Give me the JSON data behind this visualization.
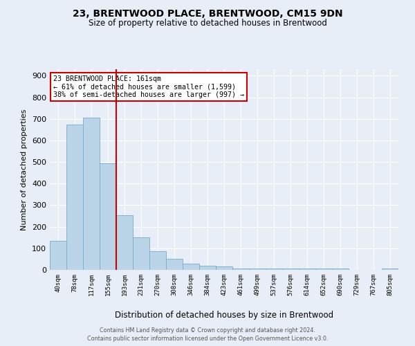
{
  "title": "23, BRENTWOOD PLACE, BRENTWOOD, CM15 9DN",
  "subtitle": "Size of property relative to detached houses in Brentwood",
  "bar_labels": [
    "40sqm",
    "78sqm",
    "117sqm",
    "155sqm",
    "193sqm",
    "231sqm",
    "270sqm",
    "308sqm",
    "346sqm",
    "384sqm",
    "423sqm",
    "461sqm",
    "499sqm",
    "537sqm",
    "576sqm",
    "614sqm",
    "652sqm",
    "690sqm",
    "729sqm",
    "767sqm",
    "805sqm"
  ],
  "bar_values": [
    135,
    675,
    705,
    495,
    252,
    152,
    86,
    51,
    28,
    20,
    15,
    7,
    7,
    5,
    5,
    5,
    5,
    5,
    0,
    0,
    5
  ],
  "bar_color": "#bad4e8",
  "bar_edge_color": "#7aaac8",
  "background_color": "#e8eef8",
  "gridcolor": "#ffffff",
  "vline_x": 3.5,
  "vline_color": "#cc0000",
  "ylabel": "Number of detached properties",
  "xlabel": "Distribution of detached houses by size in Brentwood",
  "ylim": [
    0,
    930
  ],
  "yticks": [
    0,
    100,
    200,
    300,
    400,
    500,
    600,
    700,
    800,
    900
  ],
  "annotation_title": "23 BRENTWOOD PLACE: 161sqm",
  "annotation_line1": "← 61% of detached houses are smaller (1,599)",
  "annotation_line2": "38% of semi-detached houses are larger (997) →",
  "annotation_box_color": "#ffffff",
  "annotation_box_edge": "#cc0000",
  "footnote1": "Contains HM Land Registry data © Crown copyright and database right 2024.",
  "footnote2": "Contains public sector information licensed under the Open Government Licence v3.0."
}
